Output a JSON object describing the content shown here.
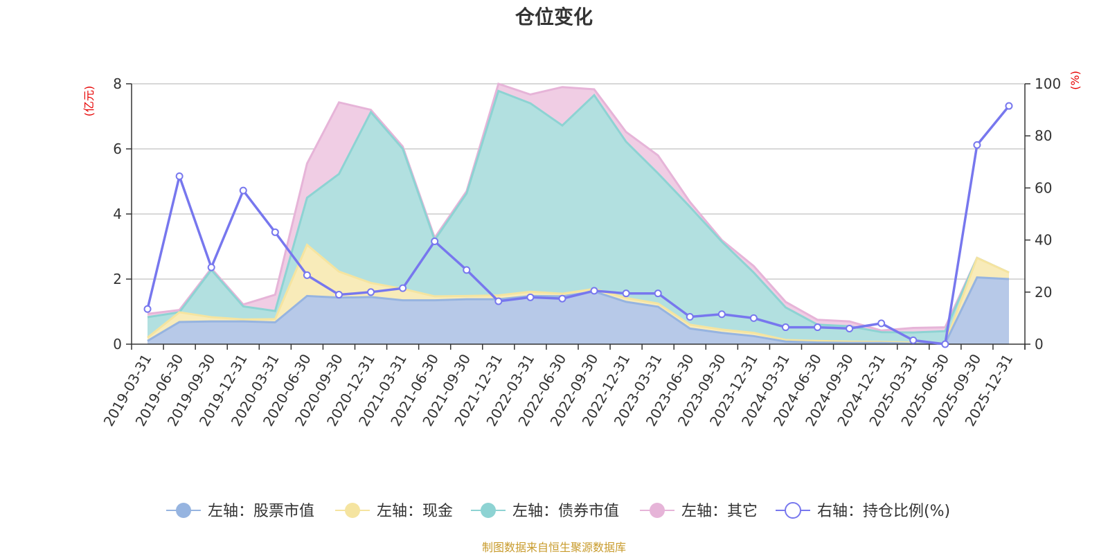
{
  "chart_data": {
    "type": "area",
    "title": "仓位变化",
    "left_unit": "(亿元)",
    "right_unit": "(%)",
    "left_axis": {
      "min": 0,
      "max": 8,
      "ticks": [
        "0",
        "2",
        "4",
        "6",
        "8"
      ]
    },
    "right_axis": {
      "min": 0,
      "max": 100,
      "ticks": [
        "0",
        "20",
        "40",
        "60",
        "80",
        "100"
      ]
    },
    "grid": true,
    "stacked": true,
    "legend_position": "bottom",
    "source": "制图数据来自恒生聚源数据库",
    "categories": [
      "2019-03-31",
      "2019-06-30",
      "2019-09-30",
      "2019-12-31",
      "2020-03-31",
      "2020-06-30",
      "2020-09-30",
      "2020-12-31",
      "2021-03-31",
      "2021-06-30",
      "2021-09-30",
      "2021-12-31",
      "2022-03-31",
      "2022-06-30",
      "2022-09-30",
      "2022-12-31",
      "2023-03-31",
      "2023-06-30",
      "2023-09-30",
      "2023-12-31",
      "2024-03-31",
      "2024-06-30",
      "2024-09-30",
      "2024-12-31",
      "2025-03-31",
      "2025-06-30",
      "2025-09-30",
      "2025-12-31"
    ],
    "series": [
      {
        "name": "左轴：股票市值",
        "axis": "left",
        "color": "#96b4e0",
        "fill": "#b7c9e8",
        "values": [
          0.1,
          0.68,
          0.7,
          0.7,
          0.67,
          1.48,
          1.43,
          1.45,
          1.35,
          1.35,
          1.38,
          1.38,
          1.48,
          1.47,
          1.62,
          1.3,
          1.15,
          0.48,
          0.35,
          0.25,
          0.08,
          0.05,
          0.04,
          0.04,
          0.02,
          0.02,
          2.05,
          2.0
        ]
      },
      {
        "name": "左轴：现金",
        "axis": "left",
        "color": "#f5e4a0",
        "fill": "#f8ebb9",
        "values": [
          0.1,
          0.3,
          0.13,
          0.06,
          0.1,
          1.57,
          0.8,
          0.43,
          0.35,
          0.12,
          0.1,
          0.12,
          0.13,
          0.08,
          0.08,
          0.12,
          0.1,
          0.12,
          0.1,
          0.1,
          0.05,
          0.05,
          0.04,
          0.03,
          0.03,
          0.0,
          0.6,
          0.2
        ]
      },
      {
        "name": "左轴：债券市值",
        "axis": "left",
        "color": "#8dd3d3",
        "fill": "#b2e0e0",
        "values": [
          0.63,
          0.0,
          1.45,
          0.4,
          0.25,
          1.45,
          3.0,
          5.25,
          4.3,
          1.73,
          3.15,
          6.28,
          5.79,
          5.17,
          5.95,
          4.8,
          4.0,
          3.62,
          2.7,
          1.85,
          1.0,
          0.5,
          0.47,
          0.3,
          0.31,
          0.38,
          0.0,
          0.0
        ]
      },
      {
        "name": "左轴：其它",
        "axis": "left",
        "color": "#e6b4d8",
        "fill": "#f0cde4",
        "values": [
          0.1,
          0.07,
          0.05,
          0.06,
          0.5,
          1.05,
          2.2,
          0.07,
          0.07,
          0.07,
          0.07,
          0.22,
          0.27,
          1.18,
          0.18,
          0.3,
          0.55,
          0.15,
          0.05,
          0.2,
          0.17,
          0.15,
          0.15,
          0.05,
          0.14,
          0.12,
          0.0,
          0.0
        ]
      },
      {
        "name": "右轴：持仓比例(%)",
        "axis": "right",
        "type": "line",
        "color": "#7777ee",
        "values": [
          13.5,
          64.5,
          29.5,
          59.0,
          43.0,
          26.5,
          19.0,
          20.0,
          21.5,
          39.5,
          28.5,
          16.5,
          18.0,
          17.5,
          20.5,
          19.5,
          19.5,
          10.5,
          11.5,
          10.0,
          6.5,
          6.5,
          6.0,
          8.0,
          1.5,
          0.0,
          76.5,
          91.5
        ]
      }
    ]
  }
}
